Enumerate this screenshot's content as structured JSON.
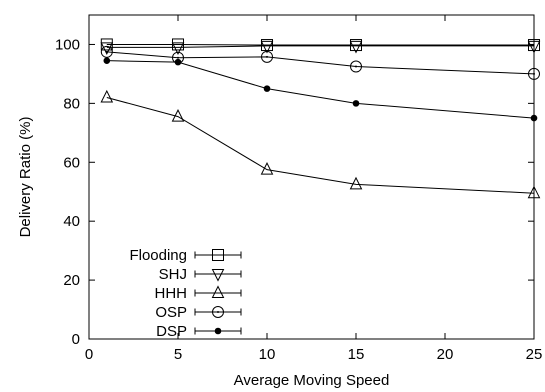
{
  "chart_data": {
    "type": "line",
    "title": "",
    "xlabel": "Average Moving Speed",
    "ylabel": "Delivery Ratio (%)",
    "xlim": [
      0,
      25
    ],
    "ylim": [
      0,
      110
    ],
    "xticks": [
      0,
      5,
      10,
      15,
      20,
      25
    ],
    "yticks": [
      0,
      20,
      40,
      60,
      80,
      100
    ],
    "grid": false,
    "legend_position": "bottom-left",
    "x": [
      1,
      5,
      10,
      15,
      25
    ],
    "series": [
      {
        "name": "Flooding",
        "marker": "square",
        "values": [
          100,
          100,
          99.8,
          99.8,
          99.8
        ]
      },
      {
        "name": "SHJ",
        "marker": "triangle-down",
        "values": [
          99,
          99,
          99.5,
          99.5,
          99.5
        ]
      },
      {
        "name": "HHH",
        "marker": "triangle-up",
        "values": [
          82,
          75.5,
          57.5,
          52.5,
          49.5
        ]
      },
      {
        "name": "OSP",
        "marker": "circle-dot",
        "values": [
          97.5,
          95.5,
          95.8,
          92.5,
          90
        ]
      },
      {
        "name": "DSP",
        "marker": "filled-circle",
        "values": [
          94.5,
          94,
          85,
          80,
          75
        ]
      }
    ]
  }
}
